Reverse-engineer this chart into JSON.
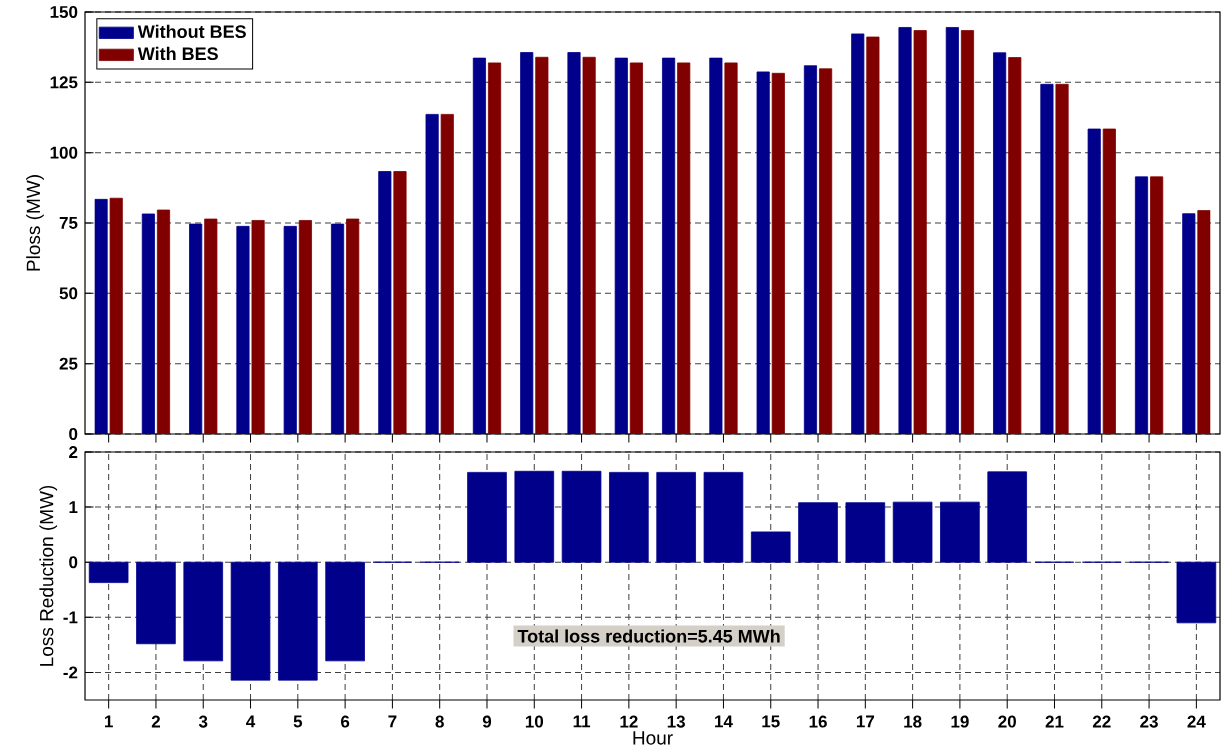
{
  "chart_data": [
    {
      "type": "bar",
      "ylabel": "Ploss (MW)",
      "categories": [
        "1",
        "2",
        "3",
        "4",
        "5",
        "6",
        "7",
        "8",
        "9",
        "10",
        "11",
        "12",
        "13",
        "14",
        "15",
        "16",
        "17",
        "18",
        "19",
        "20",
        "21",
        "22",
        "23",
        "24"
      ],
      "ylim": [
        0,
        150
      ],
      "yticks": [
        0,
        25,
        50,
        75,
        100,
        125,
        150
      ],
      "grid": "y",
      "legend": "top left",
      "tick_labels": "y",
      "series": [
        {
          "name": "Without BES",
          "color": "#00008b",
          "values": [
            83.4,
            78.2,
            74.6,
            73.8,
            73.8,
            74.6,
            93.3,
            113.6,
            133.6,
            135.6,
            135.6,
            133.6,
            133.6,
            133.6,
            128.7,
            130.9,
            142.2,
            144.5,
            144.5,
            135.5,
            124.3,
            108.4,
            91.4,
            78.3
          ]
        },
        {
          "name": "With BES",
          "color": "#800000",
          "values": [
            83.8,
            79.6,
            76.4,
            75.9,
            75.9,
            76.4,
            93.3,
            113.6,
            131.9,
            133.9,
            133.9,
            131.9,
            131.9,
            131.9,
            128.2,
            129.8,
            141.1,
            143.4,
            143.4,
            133.8,
            124.3,
            108.4,
            91.4,
            79.4
          ]
        }
      ]
    },
    {
      "type": "bar",
      "xlabel": "Hour",
      "ylabel": "Loss Reduction (MW)",
      "categories": [
        "1",
        "2",
        "3",
        "4",
        "5",
        "6",
        "7",
        "8",
        "9",
        "10",
        "11",
        "12",
        "13",
        "14",
        "15",
        "16",
        "17",
        "18",
        "19",
        "20",
        "21",
        "22",
        "23",
        "24"
      ],
      "ylim": [
        -2.5,
        2
      ],
      "yticks": [
        -2,
        -1,
        0,
        1,
        2
      ],
      "grid": true,
      "series": [
        {
          "color": "#00008b",
          "values": [
            -0.37,
            -1.48,
            -1.79,
            -2.14,
            -2.14,
            -1.79,
            0,
            0,
            1.63,
            1.65,
            1.65,
            1.63,
            1.63,
            1.63,
            0.55,
            1.08,
            1.08,
            1.09,
            1.09,
            1.64,
            0,
            0,
            0,
            -1.1
          ]
        }
      ],
      "annotations": [
        "Total loss reduction=5.45 MWh"
      ]
    }
  ]
}
